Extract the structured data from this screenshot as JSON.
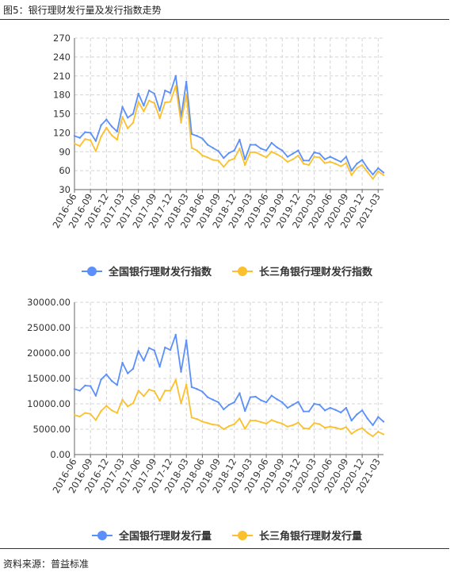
{
  "figure": {
    "title": "图5：银行理财发行量及发行指数走势",
    "source": "资料来源：普益标准"
  },
  "colors": {
    "national": "#5B8FF9",
    "yrd": "#FBC02D",
    "grid": "#d4d4d4",
    "axis": "#666666"
  },
  "chart_data": [
    {
      "type": "line",
      "x": [
        "2016-06",
        "2016-07",
        "2016-08",
        "2016-09",
        "2016-10",
        "2016-11",
        "2016-12",
        "2017-01",
        "2017-02",
        "2017-03",
        "2017-04",
        "2017-05",
        "2017-06",
        "2017-07",
        "2017-08",
        "2017-09",
        "2017-10",
        "2017-11",
        "2017-12",
        "2018-01",
        "2018-02",
        "2018-03",
        "2018-04",
        "2018-05",
        "2018-06",
        "2018-07",
        "2018-08",
        "2018-09",
        "2018-10",
        "2018-11",
        "2018-12",
        "2019-01",
        "2019-02",
        "2019-03",
        "2019-04",
        "2019-05",
        "2019-06",
        "2019-07",
        "2019-08",
        "2019-09",
        "2019-10",
        "2019-11",
        "2019-12",
        "2020-01",
        "2020-02",
        "2020-03",
        "2020-04",
        "2020-05",
        "2020-06",
        "2020-07",
        "2020-08",
        "2020-09",
        "2020-10",
        "2020-11",
        "2020-12",
        "2021-01",
        "2021-02",
        "2021-03",
        "2021-04"
      ],
      "xtick_labels": [
        "2016-06",
        "2016-09",
        "2016-12",
        "2017-03",
        "2017-06",
        "2017-09",
        "2017-12",
        "2018-03",
        "2018-06",
        "2018-09",
        "2018-12",
        "2019-03",
        "2019-06",
        "2019-09",
        "2019-12",
        "2020-03",
        "2020-06",
        "2020-09",
        "2020-12",
        "2021-03"
      ],
      "yticks": [
        "30",
        "60",
        "90",
        "120",
        "150",
        "180",
        "210",
        "240",
        "270"
      ],
      "ylim": [
        30,
        270
      ],
      "grid": true,
      "legend_position": "bottom",
      "series": [
        {
          "name": "全国银行理财发行指数",
          "color_key": "national",
          "values": [
            115,
            112,
            121,
            120,
            107,
            132,
            141,
            130,
            122,
            161,
            144,
            150,
            182,
            163,
            187,
            182,
            155,
            187,
            183,
            210,
            145,
            201,
            118,
            115,
            111,
            101,
            96,
            91,
            80,
            88,
            92,
            109,
            78,
            101,
            101,
            95,
            92,
            104,
            97,
            92,
            82,
            87,
            92,
            76,
            76,
            89,
            87,
            78,
            82,
            78,
            74,
            82,
            60,
            71,
            77,
            64,
            54,
            64,
            57
          ]
        },
        {
          "name": "长三角银行理财发行指数",
          "color_key": "yrd",
          "values": [
            103,
            99,
            110,
            108,
            91,
            114,
            128,
            116,
            109,
            145,
            127,
            136,
            169,
            154,
            171,
            167,
            143,
            168,
            169,
            194,
            136,
            181,
            96,
            92,
            84,
            81,
            77,
            76,
            66,
            76,
            79,
            95,
            69,
            89,
            89,
            85,
            81,
            90,
            86,
            81,
            74,
            78,
            84,
            71,
            69,
            82,
            81,
            72,
            74,
            71,
            67,
            72,
            53,
            64,
            69,
            58,
            47,
            59,
            53
          ]
        }
      ]
    },
    {
      "type": "line",
      "x": [
        "2016-06",
        "2016-07",
        "2016-08",
        "2016-09",
        "2016-10",
        "2016-11",
        "2016-12",
        "2017-01",
        "2017-02",
        "2017-03",
        "2017-04",
        "2017-05",
        "2017-06",
        "2017-07",
        "2017-08",
        "2017-09",
        "2017-10",
        "2017-11",
        "2017-12",
        "2018-01",
        "2018-02",
        "2018-03",
        "2018-04",
        "2018-05",
        "2018-06",
        "2018-07",
        "2018-08",
        "2018-09",
        "2018-10",
        "2018-11",
        "2018-12",
        "2019-01",
        "2019-02",
        "2019-03",
        "2019-04",
        "2019-05",
        "2019-06",
        "2019-07",
        "2019-08",
        "2019-09",
        "2019-10",
        "2019-11",
        "2019-12",
        "2020-01",
        "2020-02",
        "2020-03",
        "2020-04",
        "2020-05",
        "2020-06",
        "2020-07",
        "2020-08",
        "2020-09",
        "2020-10",
        "2020-11",
        "2020-12",
        "2021-01",
        "2021-02",
        "2021-03",
        "2021-04"
      ],
      "xtick_labels": [
        "2016-06",
        "2016-09",
        "2016-12",
        "2017-03",
        "2017-06",
        "2017-09",
        "2017-12",
        "2018-03",
        "2018-06",
        "2018-09",
        "2018-12",
        "2019-03",
        "2019-06",
        "2019-09",
        "2019-12",
        "2020-03",
        "2020-06",
        "2020-09",
        "2020-12",
        "2021-03"
      ],
      "yticks": [
        "0.00",
        "5000.00",
        "10000.00",
        "15000.00",
        "20000.00",
        "25000.00",
        "30000.00"
      ],
      "ylim": [
        0,
        30000
      ],
      "grid": true,
      "legend_position": "bottom",
      "series": [
        {
          "name": "全国银行理财发行量",
          "color_key": "national",
          "values": [
            12900,
            12600,
            13600,
            13500,
            11600,
            14800,
            15800,
            14500,
            13700,
            18100,
            16000,
            16900,
            20400,
            18500,
            21000,
            20500,
            17300,
            21100,
            20600,
            23600,
            16300,
            22500,
            13300,
            12900,
            12400,
            11300,
            10800,
            10300,
            8900,
            9800,
            10300,
            12100,
            8600,
            11300,
            11400,
            10700,
            10300,
            11600,
            10900,
            10300,
            9200,
            9800,
            10400,
            8500,
            8500,
            10000,
            9800,
            8700,
            9200,
            8800,
            8300,
            9200,
            6700,
            7900,
            8700,
            7100,
            5800,
            7400,
            6500
          ]
        },
        {
          "name": "长三角银行理财发行量",
          "color_key": "yrd",
          "values": [
            7800,
            7500,
            8200,
            8000,
            6800,
            8600,
            9600,
            8700,
            8200,
            10800,
            9500,
            10100,
            12600,
            11500,
            12800,
            12500,
            10600,
            12600,
            12600,
            14700,
            10100,
            13800,
            7300,
            7000,
            6500,
            6200,
            5900,
            5800,
            5000,
            5600,
            6000,
            7100,
            5100,
            6700,
            6700,
            6400,
            6100,
            6800,
            6400,
            6100,
            5500,
            5800,
            6300,
            5200,
            5100,
            6200,
            6000,
            5300,
            5500,
            5300,
            5000,
            5400,
            4100,
            4800,
            5200,
            4300,
            3600,
            4500,
            4000
          ]
        }
      ]
    }
  ]
}
